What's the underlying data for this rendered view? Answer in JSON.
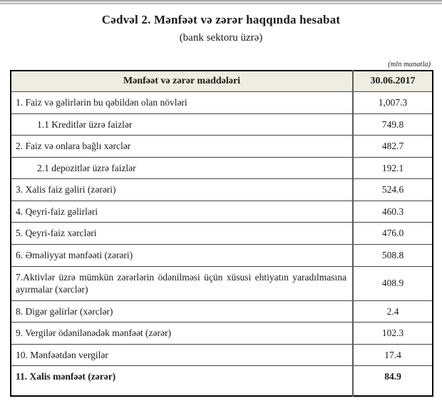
{
  "page": {
    "title": "Cədvəl 2. Mənfəət və zərər haqqında hesabat",
    "subtitle": "(bank sektoru üzrə)",
    "unit_note": "(mln manatla)"
  },
  "table": {
    "headers": {
      "items": "Mənfəət və zərər maddələri",
      "date": "30.06.2017"
    },
    "rows": [
      {
        "label": "1. Faiz və gəlirlərin bu qəbildən olan növləri",
        "value": "1,007.3",
        "indent": false,
        "bold": false,
        "justify": false
      },
      {
        "label": "1.1 Kreditlər üzrə faizlər",
        "value": "749.8",
        "indent": true,
        "bold": false,
        "justify": false
      },
      {
        "label": "2. Faiz və onlara bağlı xərclər",
        "value": "482.7",
        "indent": false,
        "bold": false,
        "justify": false
      },
      {
        "label": "2.1 depozitlər üzrə faizlər",
        "value": "192.1",
        "indent": true,
        "bold": false,
        "justify": false
      },
      {
        "label": "3. Xalis faiz gəliri (zərəri)",
        "value": "524.6",
        "indent": false,
        "bold": false,
        "justify": false
      },
      {
        "label": "4. Qeyri-faiz gəlirləri",
        "value": "460.3",
        "indent": false,
        "bold": false,
        "justify": false
      },
      {
        "label": "5. Qeyri-faiz xərcləri",
        "value": "476.0",
        "indent": false,
        "bold": false,
        "justify": false
      },
      {
        "label": "6. Əməliyyat mənfəəti (zərəri)",
        "value": "508.8",
        "indent": false,
        "bold": false,
        "justify": false
      },
      {
        "label": "7.Aktivlər üzrə mümkün zərərlərin ödənilməsi üçün xüsusi ehtiyatın yaradılmasına ayırmalar (xərclər)",
        "value": "408.9",
        "indent": false,
        "bold": false,
        "justify": true
      },
      {
        "label": "8. Digər gəlirlər (xərclər)",
        "value": "2.4",
        "indent": false,
        "bold": false,
        "justify": false
      },
      {
        "label": "9. Vergilər ödənilənədək mənfəət (zərər)",
        "value": "102.3",
        "indent": false,
        "bold": false,
        "justify": false
      },
      {
        "label": "10. Mənfəətdən vergilər",
        "value": "17.4",
        "indent": false,
        "bold": false,
        "justify": false
      },
      {
        "label": "11. Xalis mənfəət (zərər)",
        "value": "84.9",
        "indent": false,
        "bold": true,
        "justify": false
      }
    ]
  },
  "colors": {
    "header_bg": "#eeede1",
    "outer_border": "#000000",
    "inner_border": "#454545",
    "divider_bar": "#9b9b9b"
  }
}
